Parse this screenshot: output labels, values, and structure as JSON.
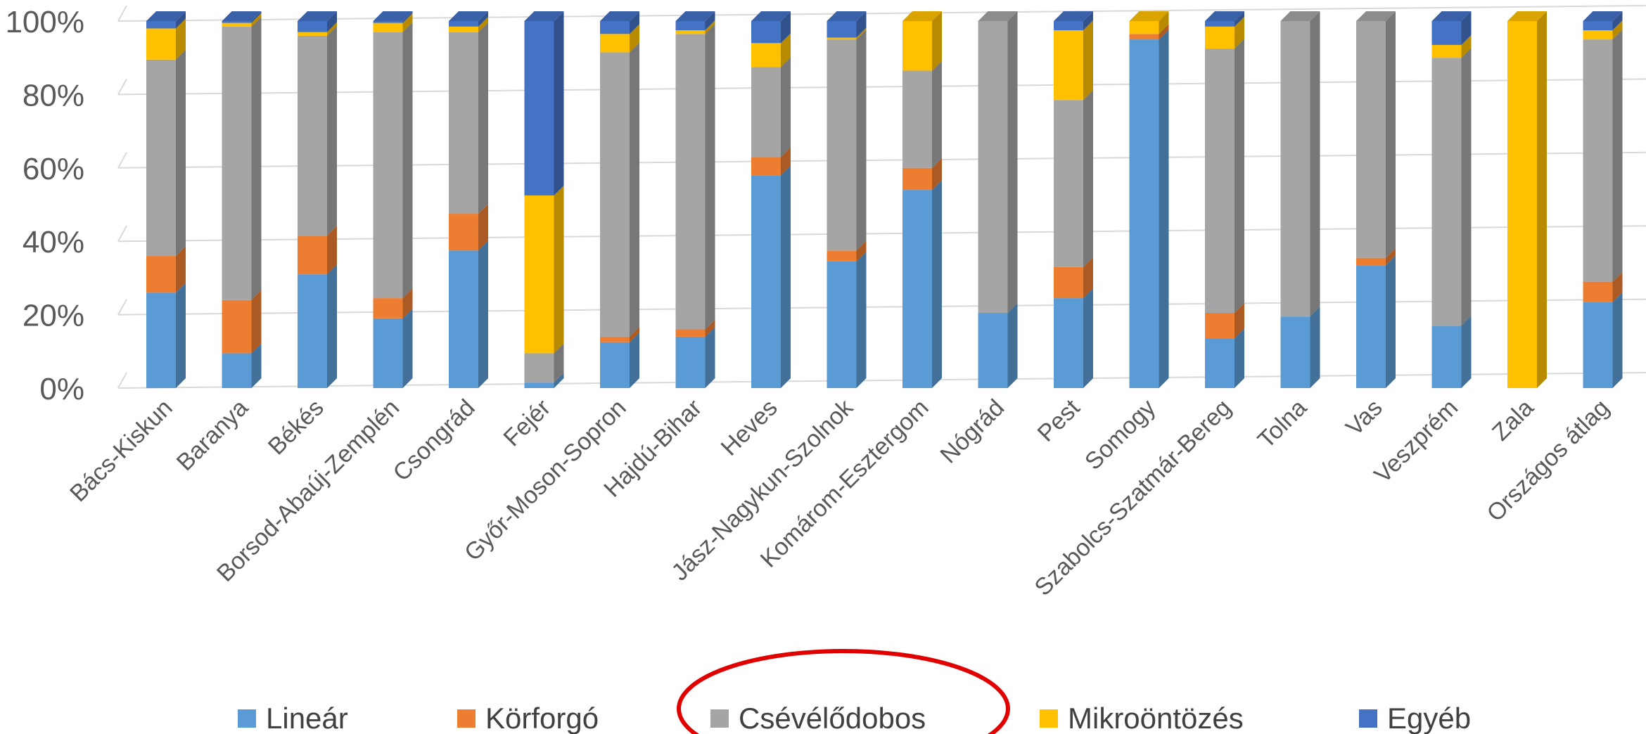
{
  "chart_data": {
    "type": "bar",
    "stacked": true,
    "percent": true,
    "style": "3d-column",
    "categories": [
      "Bács-Kiskun",
      "Baranya",
      "Békés",
      "Borsod-Abaúj-Zemplén",
      "Csongrád",
      "Fejér",
      "Győr-Moson-Sopron",
      "Hajdú-Bihar",
      "Heves",
      "Jász-Nagykun-Szolnok",
      "Komárom-Esztergom",
      "Nógrád",
      "Pest",
      "Somogy",
      "Szabolcs-Szatmár-Bereg",
      "Tolna",
      "Vas",
      "Veszprém",
      "Zala",
      "Országos átlag"
    ],
    "series": [
      {
        "name": "Lineár",
        "color": "#5B9BD5",
        "values": [
          26,
          9.5,
          31,
          19,
          37.5,
          1.5,
          12.5,
          14,
          58,
          34.5,
          54,
          20.5,
          24.5,
          95,
          13.5,
          19.5,
          33.5,
          17,
          0,
          23.5
        ]
      },
      {
        "name": "Körforgó",
        "color": "#ED7D31",
        "values": [
          10,
          14.5,
          10.5,
          5.5,
          10,
          0,
          1.5,
          2,
          5,
          3,
          6,
          0,
          8.5,
          1.5,
          7,
          0,
          2,
          0,
          0,
          5.5
        ]
      },
      {
        "name": "Csévélődobos",
        "color": "#A5A5A5",
        "values": [
          53.5,
          74.5,
          54.5,
          72.5,
          49.5,
          8,
          77.5,
          80.5,
          24.5,
          57.5,
          26.5,
          79.5,
          45.5,
          0,
          72,
          80.5,
          64.5,
          73,
          0,
          66
        ]
      },
      {
        "name": "Mikroöntözés",
        "color": "#FFC000",
        "values": [
          8.5,
          1,
          1,
          2.5,
          1.5,
          43,
          5,
          1,
          6.5,
          0.5,
          13.5,
          0,
          19,
          3.5,
          6,
          0,
          0,
          3.5,
          100,
          2.5
        ]
      },
      {
        "name": "Egyéb",
        "color": "#4472C4",
        "values": [
          2,
          0.5,
          3,
          0.5,
          1.5,
          47.5,
          3.5,
          2.5,
          6,
          4.5,
          0,
          0,
          2.5,
          0,
          1.5,
          0,
          0,
          6.5,
          0,
          2.5
        ]
      }
    ],
    "ylim": [
      0,
      100
    ],
    "yticks": [
      "0%",
      "20%",
      "40%",
      "60%",
      "80%",
      "100%"
    ],
    "grid": true,
    "legend_position": "bottom"
  }
}
